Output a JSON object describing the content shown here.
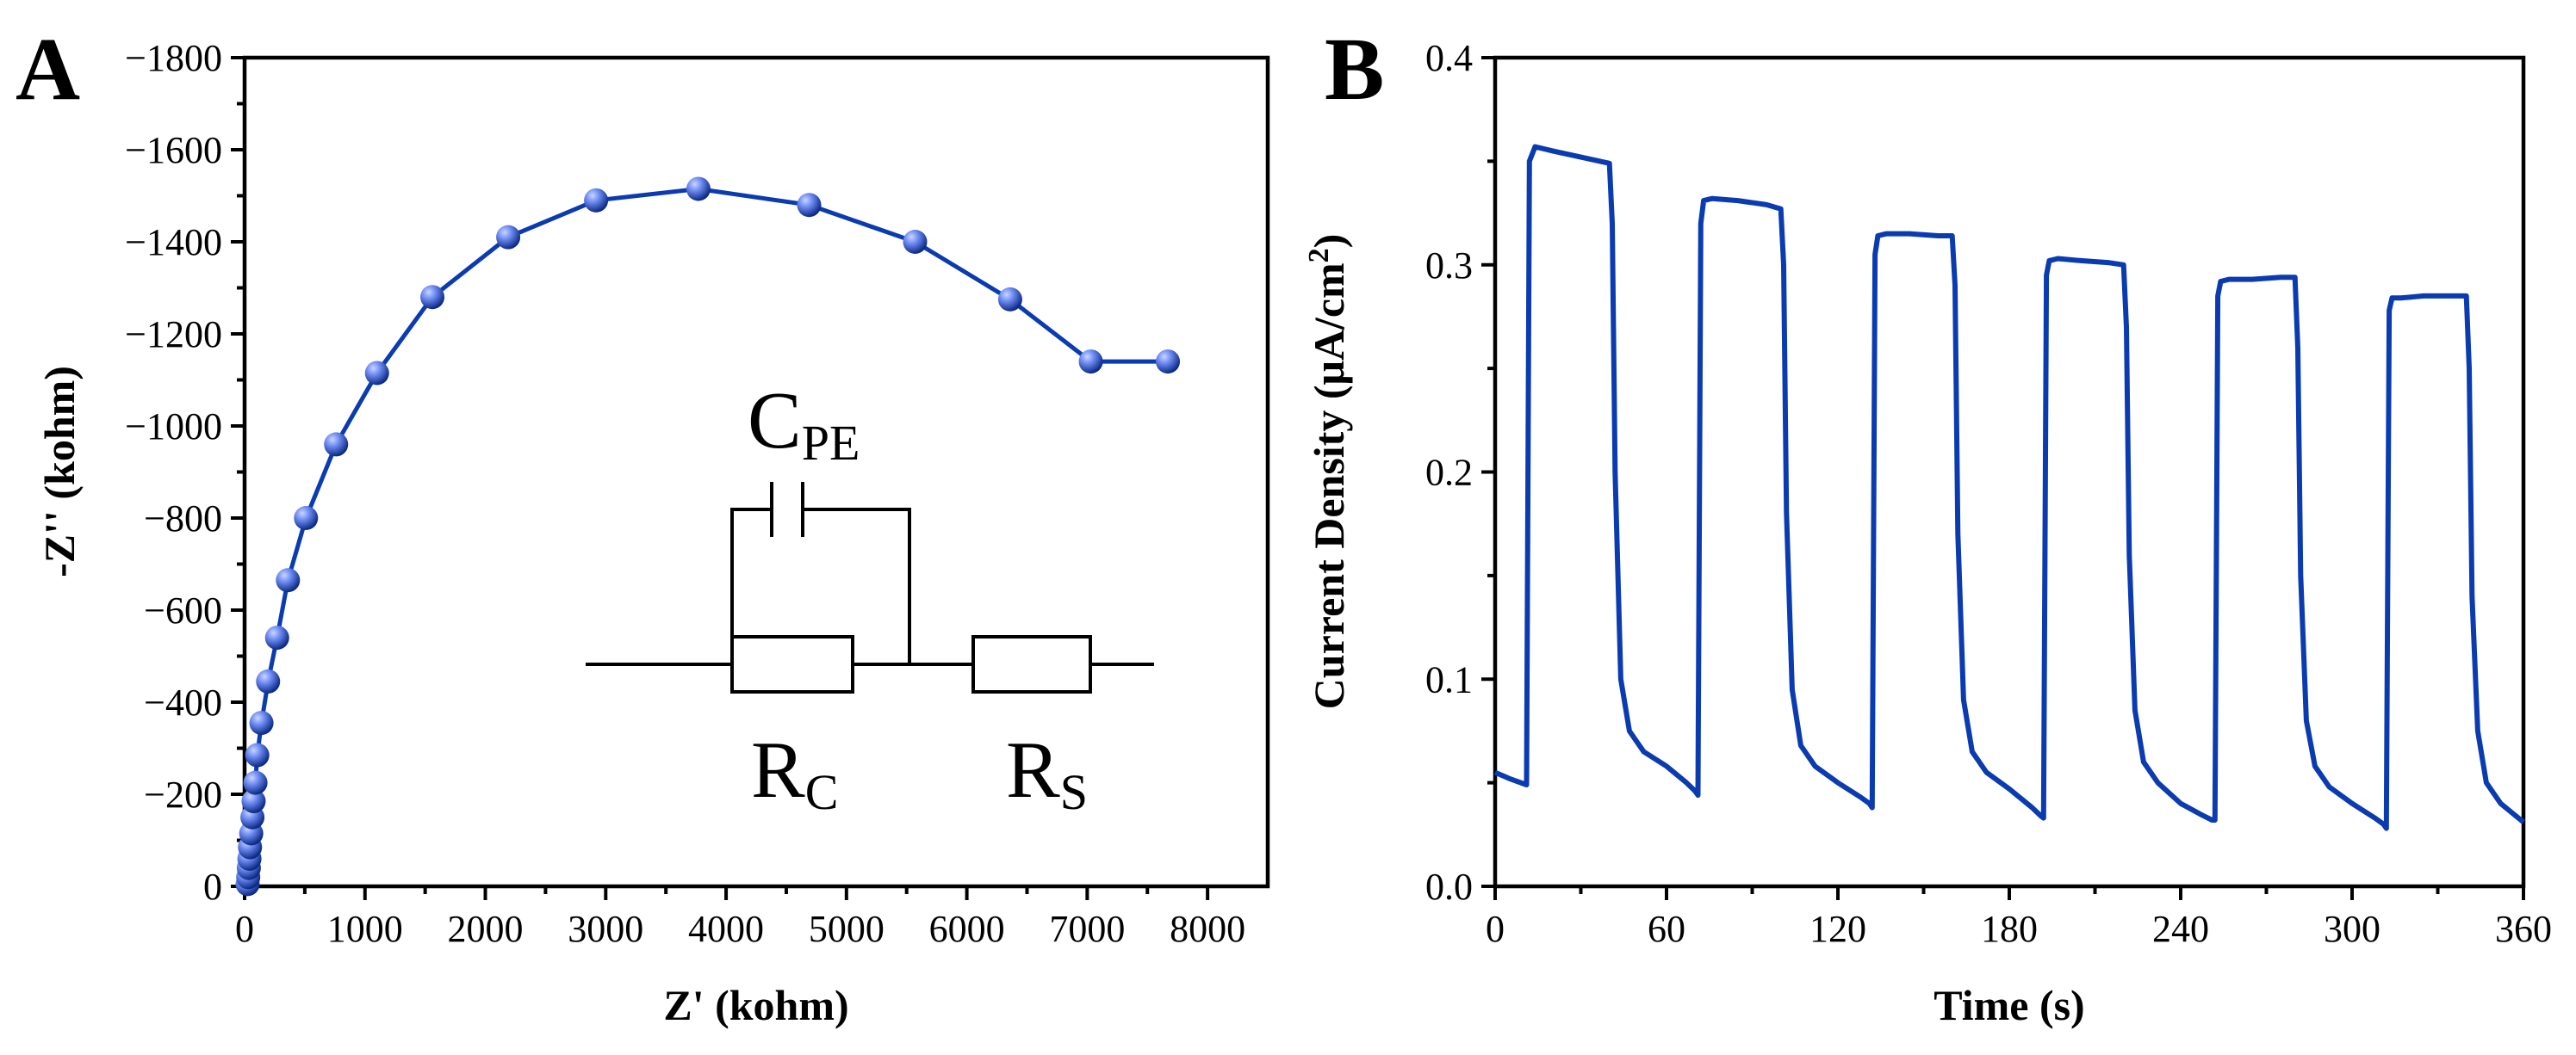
{
  "colors": {
    "series": "#0a3bb0",
    "marker_light": "#6f8cf2",
    "marker_dark": "#0b2a86"
  },
  "panel_a": {
    "letter": "A",
    "circuit": {
      "cpe_main": "C",
      "cpe_sub": "PE",
      "rc_main": "R",
      "rc_sub": "C",
      "rs_main": "R",
      "rs_sub": "S"
    }
  },
  "panel_b": {
    "letter": "B"
  },
  "chart_data": [
    {
      "type": "scatter",
      "panel": "A",
      "xlabel": "Z' (kohm)",
      "ylabel": "-Z'' (kohm)",
      "xlim": [
        0,
        8500
      ],
      "ylim": [
        0,
        -1800
      ],
      "x_ticks": [
        0,
        1000,
        2000,
        3000,
        4000,
        5000,
        6000,
        7000,
        8000
      ],
      "x_tick_labels": [
        "0",
        "1000",
        "2000",
        "3000",
        "4000",
        "5000",
        "6000",
        "7000",
        "8000"
      ],
      "y_ticks": [
        0,
        -200,
        -400,
        -600,
        -800,
        -1000,
        -1200,
        -1400,
        -1600,
        -1800
      ],
      "y_tick_labels": [
        "0",
        "−200",
        "−400",
        "−600",
        "−800",
        "−1000",
        "−1200",
        "−1400",
        "−1600",
        "−1800"
      ],
      "series": [
        {
          "x": [
            25,
            30,
            35,
            40,
            45,
            55,
            65,
            75,
            90,
            105,
            140,
            195,
            270,
            360,
            510,
            760,
            1100,
            1560,
            2190,
            2920,
            3770,
            4690,
            5570,
            6360,
            7030,
            7670
          ],
          "y": [
            -5,
            -20,
            -40,
            -60,
            -85,
            -115,
            -150,
            -185,
            -225,
            -285,
            -355,
            -445,
            -540,
            -665,
            -800,
            -960,
            -1115,
            -1280,
            -1410,
            -1490,
            -1515,
            -1480,
            -1400,
            -1275,
            -1140,
            -1140
          ]
        }
      ]
    },
    {
      "type": "line",
      "panel": "B",
      "xlabel": "Time (s)",
      "ylabel_main": "Current Density (μA/cm",
      "ylabel_sup": "2",
      "ylabel_close": ")",
      "xlim": [
        0,
        360
      ],
      "ylim": [
        0,
        0.4
      ],
      "x_ticks": [
        0,
        60,
        120,
        180,
        240,
        300,
        360
      ],
      "x_tick_labels": [
        "0",
        "60",
        "120",
        "180",
        "240",
        "300",
        "360"
      ],
      "y_ticks": [
        0,
        0.1,
        0.2,
        0.3,
        0.4
      ],
      "y_tick_labels": [
        "0.0",
        "0.1",
        "0.2",
        "0.3",
        "0.4"
      ],
      "series": [
        {
          "x": [
            0,
            5,
            11,
            12,
            14,
            20,
            30,
            40,
            41,
            42,
            44,
            47,
            52,
            60,
            67,
            70,
            71,
            72,
            73,
            76,
            85,
            95,
            100,
            101,
            102,
            104,
            107,
            112,
            120,
            128,
            131,
            132,
            133,
            134,
            137,
            145,
            155,
            160,
            161,
            162,
            164,
            167,
            172,
            180,
            188,
            191,
            192,
            193,
            194,
            197,
            205,
            215,
            220,
            221,
            222,
            224,
            227,
            232,
            240,
            248,
            251,
            252,
            253,
            254,
            257,
            265,
            275,
            280,
            281,
            282,
            284,
            287,
            292,
            300,
            308,
            311,
            312,
            313,
            314,
            317,
            325,
            335,
            340,
            341,
            342,
            344,
            347,
            352,
            360
          ],
          "y": [
            0.055,
            0.052,
            0.049,
            0.35,
            0.357,
            0.355,
            0.352,
            0.349,
            0.32,
            0.2,
            0.1,
            0.075,
            0.065,
            0.058,
            0.05,
            0.046,
            0.044,
            0.32,
            0.331,
            0.332,
            0.331,
            0.329,
            0.327,
            0.3,
            0.18,
            0.095,
            0.068,
            0.058,
            0.05,
            0.043,
            0.04,
            0.038,
            0.305,
            0.314,
            0.315,
            0.315,
            0.314,
            0.314,
            0.29,
            0.17,
            0.09,
            0.065,
            0.055,
            0.047,
            0.038,
            0.034,
            0.033,
            0.295,
            0.302,
            0.303,
            0.302,
            0.301,
            0.3,
            0.27,
            0.16,
            0.085,
            0.06,
            0.05,
            0.04,
            0.034,
            0.032,
            0.032,
            0.285,
            0.292,
            0.293,
            0.293,
            0.294,
            0.294,
            0.26,
            0.15,
            0.08,
            0.058,
            0.048,
            0.04,
            0.033,
            0.03,
            0.028,
            0.278,
            0.284,
            0.284,
            0.285,
            0.285,
            0.285,
            0.25,
            0.14,
            0.075,
            0.05,
            0.04,
            0.031
          ]
        }
      ]
    }
  ]
}
